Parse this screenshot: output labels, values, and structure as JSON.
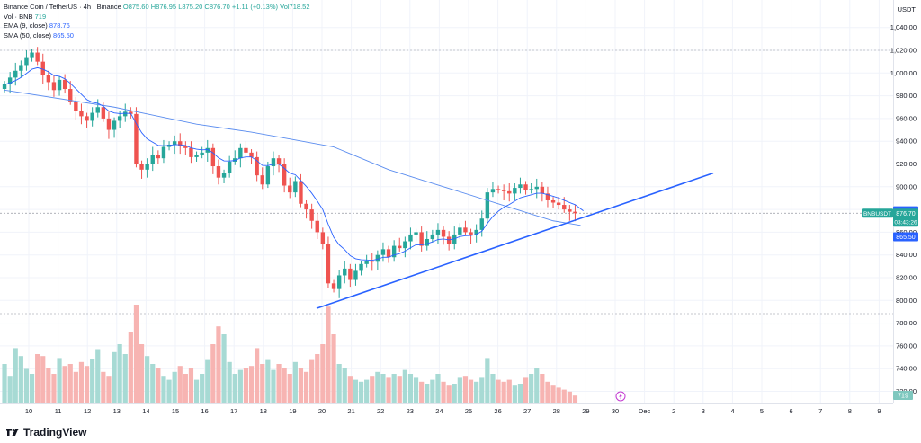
{
  "header": {
    "symbol_line": "Binance Coin / TetherUS · 4h · Binance",
    "ohlc": {
      "o": "O875.60",
      "h": "H876.95",
      "l": "L875.20",
      "c": "C876.70",
      "chg": "+1.11 (+0.13%)",
      "vol": "Vol718.52"
    },
    "vol_line_label": "Vol · BNB",
    "vol_line_value": "719",
    "ema_label": "EMA (9, close)",
    "ema_value": "878.76",
    "sma_label": "SMA (50, close)",
    "sma_value": "865.50"
  },
  "currency": "USDT",
  "brand": "TradingView",
  "colors": {
    "up": "#26a69a",
    "down": "#ef5350",
    "ema": "#2962ff",
    "sma": "#5b8def",
    "trend": "#2962ff",
    "grid": "#f0f3fa"
  },
  "price_tags": {
    "ema": "878.76",
    "pair": "BNBUSDT",
    "last": "876.70",
    "countdown": "03:43:26",
    "sma": "865.50",
    "volume": "719"
  },
  "chart_data": {
    "type": "candlestick",
    "interval": "4h",
    "y_ticks": [
      1040,
      1020,
      1000,
      980,
      960,
      940,
      920,
      900,
      880,
      860,
      840,
      820,
      800,
      780,
      760,
      740,
      720
    ],
    "y_tick_labels": [
      "1,040.00",
      "1,020.00",
      "1,000.00",
      "980.00",
      "960.00",
      "940.00",
      "920.00",
      "900.00",
      "880.00",
      "860.00",
      "840.00",
      "820.00",
      "800.00",
      "780.00",
      "760.00",
      "740.00",
      "720.00"
    ],
    "x_labels": [
      "10",
      "11",
      "12",
      "13",
      "14",
      "15",
      "16",
      "17",
      "18",
      "19",
      "20",
      "21",
      "22",
      "23",
      "24",
      "25",
      "26",
      "27",
      "28",
      "29",
      "30",
      "Dec",
      "2",
      "3",
      "4",
      "5",
      "6",
      "7",
      "8",
      "9"
    ],
    "closes": [
      990,
      996,
      1002,
      1007,
      1014,
      1018,
      1010,
      998,
      992,
      985,
      994,
      986,
      975,
      967,
      962,
      958,
      965,
      970,
      960,
      950,
      958,
      962,
      966,
      964,
      920,
      915,
      920,
      928,
      925,
      935,
      937,
      940,
      936,
      934,
      926,
      928,
      930,
      934,
      918,
      908,
      912,
      922,
      925,
      934,
      930,
      926,
      910,
      902,
      918,
      925,
      920,
      901,
      895,
      905,
      885,
      880,
      870,
      860,
      850,
      815,
      810,
      822,
      828,
      818,
      826,
      832,
      835,
      834,
      840,
      845,
      838,
      848,
      846,
      852,
      858,
      860,
      848,
      854,
      858,
      862,
      856,
      850,
      858,
      864,
      860,
      858,
      862,
      872,
      895,
      898,
      897,
      896,
      894,
      899,
      902,
      897,
      898,
      900,
      894,
      888,
      886,
      884,
      880,
      878,
      876.7
    ],
    "volumes": [
      40,
      28,
      56,
      48,
      35,
      30,
      50,
      48,
      36,
      30,
      46,
      38,
      40,
      32,
      42,
      38,
      45,
      55,
      32,
      28,
      52,
      60,
      50,
      72,
      100,
      60,
      48,
      40,
      36,
      28,
      24,
      32,
      38,
      30,
      36,
      24,
      30,
      44,
      60,
      78,
      70,
      42,
      30,
      34,
      36,
      38,
      56,
      40,
      44,
      34,
      40,
      36,
      30,
      42,
      36,
      32,
      44,
      50,
      60,
      98,
      70,
      40,
      36,
      28,
      24,
      22,
      24,
      28,
      32,
      30,
      26,
      30,
      28,
      34,
      30,
      26,
      22,
      20,
      24,
      30,
      22,
      18,
      20,
      26,
      28,
      24,
      22,
      26,
      46,
      30,
      24,
      22,
      24,
      18,
      20,
      26,
      30,
      36,
      30,
      22,
      18,
      16,
      14,
      12,
      8
    ],
    "sma_points": [
      [
        0,
        985
      ],
      [
        20,
        970
      ],
      [
        35,
        955
      ],
      [
        45,
        948
      ],
      [
        52,
        942
      ],
      [
        60,
        935
      ],
      [
        70,
        915
      ],
      [
        80,
        900
      ],
      [
        90,
        885
      ],
      [
        100,
        870
      ],
      [
        105,
        866
      ]
    ],
    "trendline": [
      [
        795,
        793
      ],
      [
        913,
        812
      ]
    ],
    "last_price": 876.7,
    "ema_last": 878.76,
    "sma_last": 865.5,
    "volume_last": 719
  }
}
